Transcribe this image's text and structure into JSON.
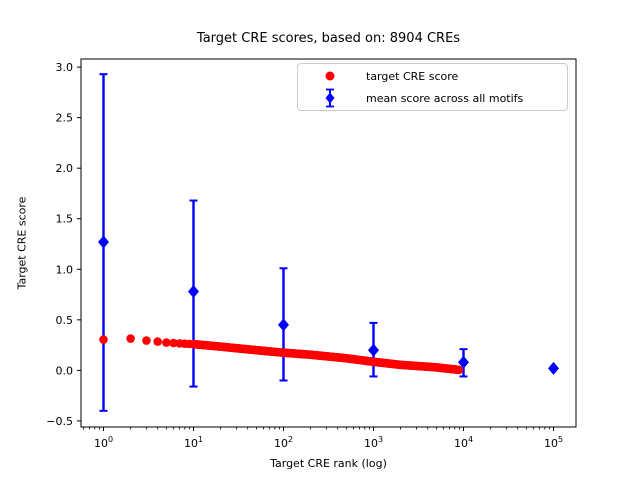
{
  "figure": {
    "background": "#ffffff",
    "plot_border_color": "#000000"
  },
  "chart_data": {
    "type": "scatter",
    "title": "Target CRE scores, based on: 8904 CREs",
    "xlabel": "Target CRE rank (log)",
    "ylabel": "Target CRE score",
    "xscale": "log",
    "xlim_log10": [
      -0.25,
      5.25
    ],
    "ylim": [
      -0.56,
      3.08
    ],
    "x_ticks": [
      1,
      10,
      100,
      1000,
      10000,
      100000
    ],
    "x_tick_labels": [
      "10⁰",
      "10¹",
      "10²",
      "10³",
      "10⁴",
      "10⁵"
    ],
    "y_ticks": [
      3.0,
      2.5,
      2.0,
      1.5,
      1.0,
      0.5,
      0.0,
      -0.5
    ],
    "y_tick_labels": [
      "3.0",
      "2.5",
      "2.0",
      "1.5",
      "1.0",
      "0.5",
      "0.0",
      "−0.5"
    ],
    "grid": false,
    "legend_position": "upper right",
    "series": [
      {
        "name": "target CRE score",
        "type": "scatter",
        "marker": "circle",
        "color": "#ff0000",
        "n_points": 8904,
        "rank_range": [
          1,
          8904
        ],
        "score_anchors": [
          [
            1,
            0.305
          ],
          [
            2,
            0.315
          ],
          [
            3,
            0.295
          ],
          [
            4,
            0.285
          ],
          [
            5,
            0.275
          ],
          [
            7,
            0.267
          ],
          [
            10,
            0.26
          ],
          [
            20,
            0.235
          ],
          [
            50,
            0.2
          ],
          [
            100,
            0.175
          ],
          [
            200,
            0.155
          ],
          [
            500,
            0.12
          ],
          [
            1000,
            0.085
          ],
          [
            2000,
            0.055
          ],
          [
            5000,
            0.03
          ],
          [
            8904,
            0.005
          ]
        ]
      },
      {
        "name": "mean score across all motifs",
        "type": "errorbar",
        "marker": "diamond",
        "color": "#0000ff",
        "x": [
          1,
          10,
          100,
          1000,
          10000,
          100000
        ],
        "y": [
          1.27,
          0.78,
          0.45,
          0.2,
          0.08,
          0.02
        ],
        "err_bottom": [
          -0.4,
          -0.16,
          -0.1,
          -0.06,
          -0.06,
          0.02
        ],
        "err_top": [
          2.93,
          1.68,
          1.01,
          0.47,
          0.21,
          0.02
        ]
      }
    ]
  }
}
